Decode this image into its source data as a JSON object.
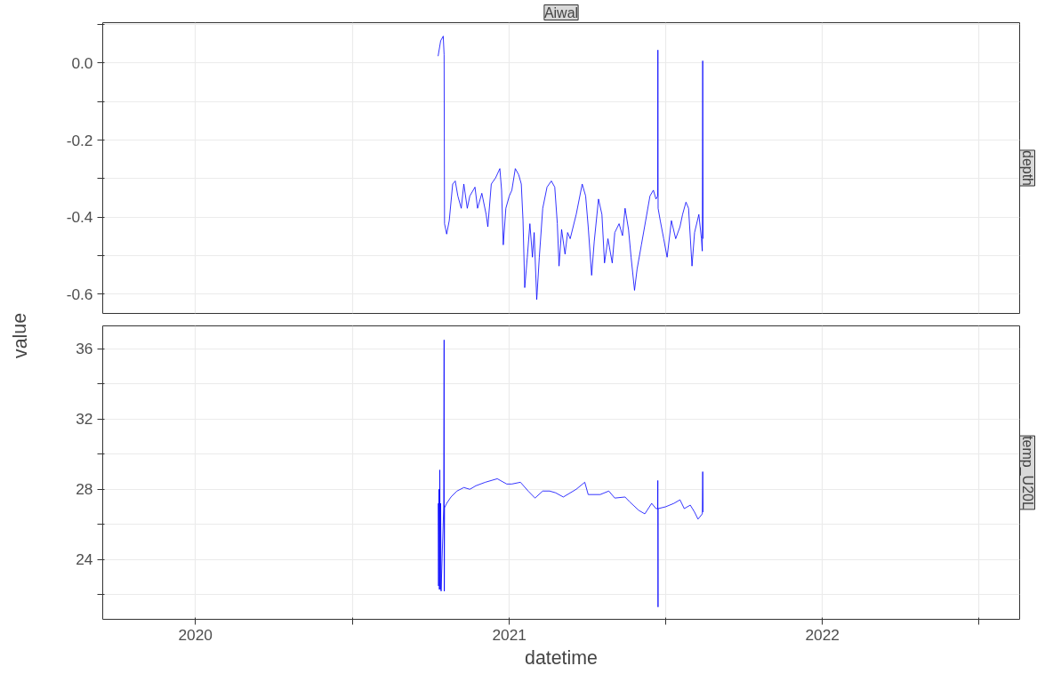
{
  "chart_data": [
    {
      "type": "line",
      "title": "Aiwal",
      "ylabel": "value",
      "tick_labels": "y",
      "grid": true,
      "xlim": [
        "2019-09-15",
        "2022-08-19"
      ],
      "xticks": [
        {
          "value": "2020-01-01",
          "label": null
        },
        {
          "value": "2020-07-02",
          "label": null
        },
        {
          "value": "2021-01-01",
          "label": null
        },
        {
          "value": "2021-07-02",
          "label": null
        },
        {
          "value": "2022-01-01",
          "label": null
        },
        {
          "value": "2022-07-02",
          "label": null
        }
      ],
      "ylim": [
        -0.65,
        0.105
      ],
      "yticks": [
        {
          "value": -0.6,
          "label": "-0.6"
        },
        {
          "value": -0.5,
          "label": null
        },
        {
          "value": -0.4,
          "label": "-0.4"
        },
        {
          "value": -0.3,
          "label": null
        },
        {
          "value": -0.2,
          "label": "-0.2"
        },
        {
          "value": -0.1,
          "label": null
        },
        {
          "value": 0.0,
          "label": "0.0"
        },
        {
          "value": 0.1,
          "label": null
        }
      ],
      "series": [
        {
          "name": "depth",
          "color": "#0000ff",
          "x": [
            "2020-10-10",
            "2020-10-13",
            "2020-10-16",
            "2020-10-17T00:00",
            "2020-10-17T12:00",
            "2020-10-20",
            "2020-10-23",
            "2020-10-27",
            "2020-10-30",
            "2020-11-02",
            "2020-11-06",
            "2020-11-09",
            "2020-11-13",
            "2020-11-16",
            "2020-11-22",
            "2020-11-25",
            "2020-11-30",
            "2020-12-05",
            "2020-12-07",
            "2020-12-11",
            "2020-12-16",
            "2020-12-21",
            "2020-12-23",
            "2020-12-25",
            "2020-12-28",
            "2021-01-01",
            "2021-01-04",
            "2021-01-08",
            "2021-01-12",
            "2021-01-15",
            "2021-01-17",
            "2021-01-19",
            "2021-01-22",
            "2021-01-25",
            "2021-01-28",
            "2021-01-30",
            "2021-02-02",
            "2021-02-05",
            "2021-02-09",
            "2021-02-14",
            "2021-02-19",
            "2021-02-23",
            "2021-02-26",
            "2021-02-28",
            "2021-03-03",
            "2021-03-07",
            "2021-03-10",
            "2021-03-13",
            "2021-03-20",
            "2021-03-27",
            "2021-03-31",
            "2021-04-03",
            "2021-04-07",
            "2021-04-10",
            "2021-04-15",
            "2021-04-19",
            "2021-04-22",
            "2021-04-26",
            "2021-05-01",
            "2021-05-04",
            "2021-05-09",
            "2021-05-13",
            "2021-05-16",
            "2021-05-20",
            "2021-05-23",
            "2021-05-27",
            "2021-05-30",
            "2021-06-04",
            "2021-06-09",
            "2021-06-14",
            "2021-06-18",
            "2021-06-21",
            "2021-06-23T00:00",
            "2021-06-23T06:00",
            "2021-06-23T12:00",
            "2021-06-26",
            "2021-06-30",
            "2021-07-04",
            "2021-07-09",
            "2021-07-14",
            "2021-07-19",
            "2021-07-22",
            "2021-07-26",
            "2021-07-29",
            "2021-08-02",
            "2021-08-05",
            "2021-08-10",
            "2021-08-13",
            "2021-08-14T00:00",
            "2021-08-14T12:00",
            "2021-08-15"
          ],
          "values": [
            0.018,
            0.058,
            0.07,
            0.022,
            -0.417,
            -0.444,
            -0.409,
            -0.314,
            -0.306,
            -0.345,
            -0.377,
            -0.314,
            -0.377,
            -0.345,
            -0.322,
            -0.377,
            -0.338,
            -0.393,
            -0.425,
            -0.314,
            -0.298,
            -0.274,
            -0.33,
            -0.472,
            -0.377,
            -0.345,
            -0.33,
            -0.274,
            -0.29,
            -0.314,
            -0.409,
            -0.583,
            -0.504,
            -0.417,
            -0.504,
            -0.44,
            -0.614,
            -0.504,
            -0.377,
            -0.322,
            -0.306,
            -0.322,
            -0.417,
            -0.527,
            -0.432,
            -0.496,
            -0.44,
            -0.456,
            -0.393,
            -0.314,
            -0.345,
            -0.425,
            -0.551,
            -0.464,
            -0.353,
            -0.393,
            -0.519,
            -0.456,
            -0.519,
            -0.44,
            -0.417,
            -0.448,
            -0.377,
            -0.432,
            -0.504,
            -0.59,
            -0.535,
            -0.472,
            -0.409,
            -0.345,
            -0.33,
            -0.353,
            -0.345,
            0.034,
            -0.377,
            -0.409,
            -0.456,
            -0.504,
            -0.409,
            -0.456,
            -0.425,
            -0.393,
            -0.361,
            -0.377,
            -0.527,
            -0.44,
            -0.393,
            -0.456,
            -0.488,
            0.006,
            -0.456
          ]
        }
      ]
    },
    {
      "type": "line",
      "xlabel": "datetime",
      "grid": true,
      "xlim": [
        "2019-09-15",
        "2022-08-19"
      ],
      "xticks": [
        {
          "value": "2020-01-01",
          "label": "2020"
        },
        {
          "value": "2020-07-02",
          "label": null
        },
        {
          "value": "2021-01-01",
          "label": "2021"
        },
        {
          "value": "2021-07-02",
          "label": null
        },
        {
          "value": "2022-01-01",
          "label": "2022"
        },
        {
          "value": "2022-07-02",
          "label": null
        }
      ],
      "ylim": [
        20.6,
        37.3
      ],
      "yticks": [
        {
          "value": 22,
          "label": null
        },
        24,
        {
          "value": 26,
          "label": null
        },
        28,
        {
          "value": 30,
          "label": null
        },
        32,
        {
          "value": 34,
          "label": null
        },
        36
      ],
      "series": [
        {
          "name": "temp_U20L",
          "color": "#0000ff",
          "x": [
            "2020-10-10T00:00",
            "2020-10-10T12:00",
            "2020-10-11T00:00",
            "2020-10-11T12:00",
            "2020-10-12T00:00",
            "2020-10-12T12:00",
            "2020-10-13T00:00",
            "2020-10-13T12:00",
            "2020-10-16T12:00",
            "2020-10-17T00:00",
            "2020-10-17T06:00",
            "2020-10-17T12:00",
            "2020-10-20",
            "2020-10-25",
            "2020-11-01",
            "2020-11-09",
            "2020-11-16",
            "2020-11-23",
            "2020-12-04",
            "2020-12-18",
            "2020-12-29",
            "2021-01-04",
            "2021-01-14",
            "2021-01-23",
            "2021-01-31",
            "2021-02-09",
            "2021-02-17",
            "2021-02-24",
            "2021-03-05",
            "2021-03-20",
            "2021-03-30",
            "2021-04-03",
            "2021-04-17",
            "2021-04-27",
            "2021-05-04",
            "2021-05-16",
            "2021-05-21",
            "2021-06-01",
            "2021-06-08",
            "2021-06-16",
            "2021-06-21",
            "2021-06-23T00:00",
            "2021-06-23T04:00",
            "2021-06-23T08:00",
            "2021-06-23T10:00",
            "2021-06-23T12:00",
            "2021-07-02",
            "2021-07-12",
            "2021-07-19",
            "2021-07-24",
            "2021-07-31",
            "2021-08-05",
            "2021-08-09",
            "2021-08-14T00:00",
            "2021-08-14T12:00",
            "2021-08-15"
          ],
          "values": [
            27.2,
            22.5,
            28.0,
            22.3,
            29.1,
            22.3,
            27.2,
            22.2,
            26.95,
            36.5,
            22.2,
            26.95,
            27.2,
            27.56,
            27.9,
            28.1,
            28.0,
            28.2,
            28.4,
            28.6,
            28.3,
            28.3,
            28.4,
            27.9,
            27.5,
            27.9,
            27.9,
            27.8,
            27.56,
            28.0,
            28.4,
            27.7,
            27.7,
            27.9,
            27.5,
            27.56,
            27.3,
            26.8,
            26.6,
            27.2,
            26.9,
            26.9,
            28.5,
            23.56,
            21.3,
            26.9,
            27.0,
            27.2,
            27.4,
            26.9,
            27.1,
            26.7,
            26.3,
            26.6,
            29.0,
            26.7
          ]
        }
      ]
    }
  ]
}
